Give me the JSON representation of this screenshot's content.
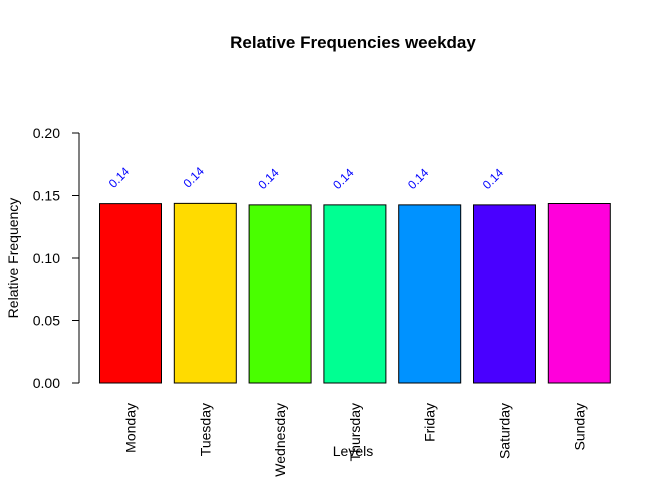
{
  "chart_data": {
    "type": "bar",
    "title": "Relative Frequencies weekday",
    "xlabel": "Levels",
    "ylabel": "Relative Frequency",
    "ylim": [
      0,
      0.2
    ],
    "yticks": [
      "0.00",
      "0.05",
      "0.10",
      "0.15",
      "0.20"
    ],
    "categories": [
      "Monday",
      "Tuesday",
      "Wednesday",
      "Thursday",
      "Friday",
      "Saturday",
      "Sunday"
    ],
    "values": [
      0.1435,
      0.1437,
      0.1425,
      0.1425,
      0.1425,
      0.1425,
      0.1436
    ],
    "data_labels": [
      "0.14",
      "0.14",
      "0.14",
      "0.14",
      "0.14",
      "0.14",
      ""
    ],
    "colors": [
      "#FF0000",
      "#FFDB00",
      "#49FF00",
      "#00FF92",
      "#0092FF",
      "#4900FF",
      "#FF00DB"
    ],
    "label_color": "#0000FF",
    "grid": false,
    "legend": "none"
  }
}
